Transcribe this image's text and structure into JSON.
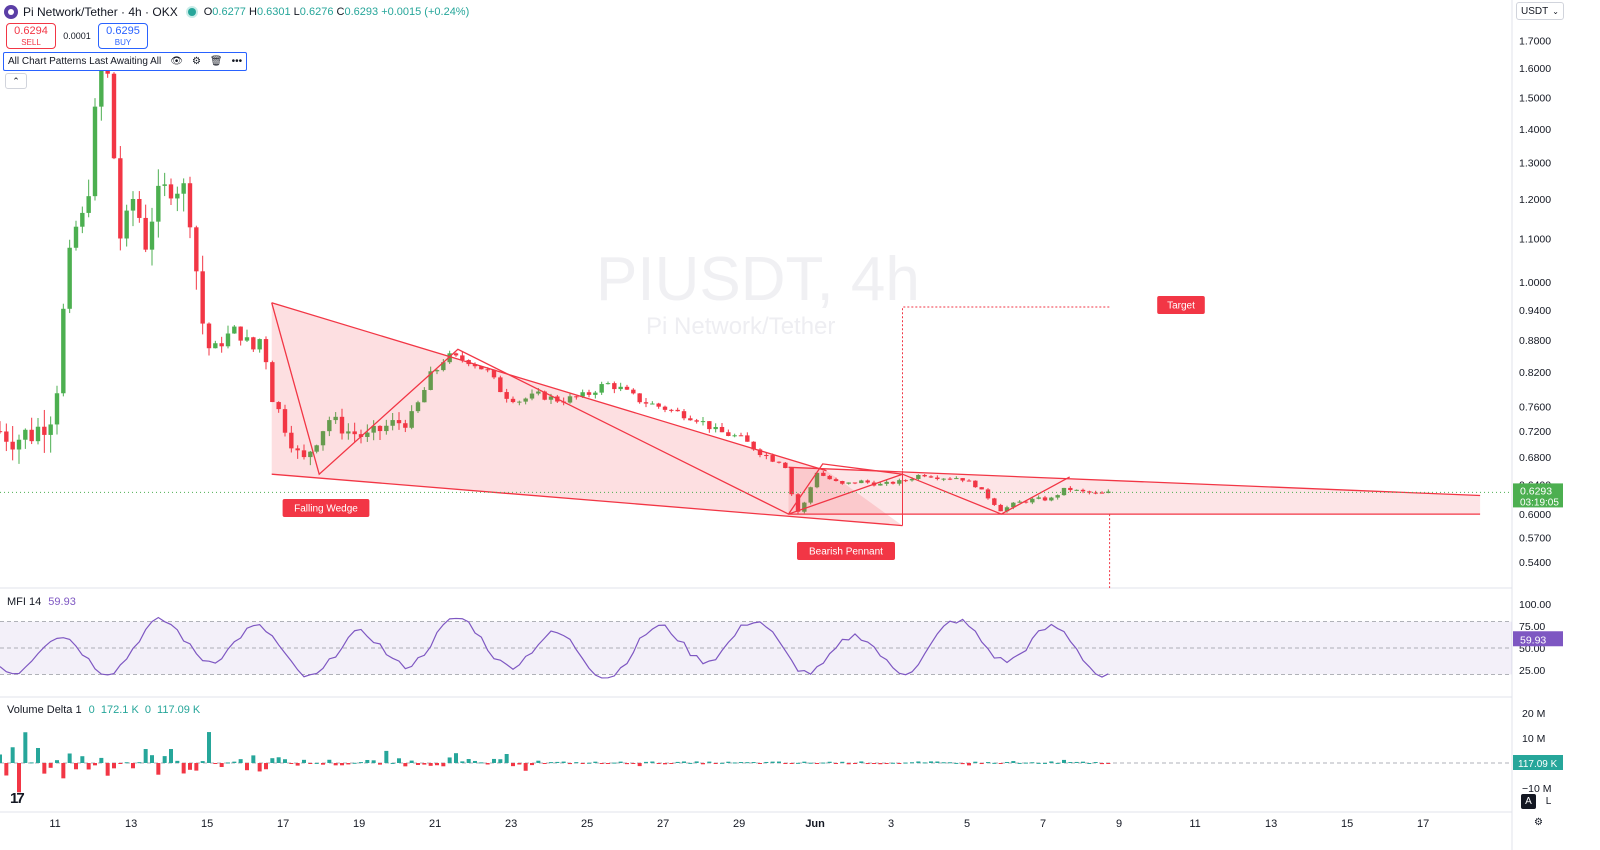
{
  "header": {
    "symbol_title": "Pi Network/Tether · 4h · OKX",
    "ohlc": {
      "o_label": "O",
      "o": "0.6277",
      "h_label": "H",
      "h": "0.6301",
      "l_label": "L",
      "l": "0.6276",
      "c_label": "C",
      "c": "0.6293",
      "change": "+0.0015 (+0.24%)"
    }
  },
  "trade": {
    "sell_price": "0.6294",
    "sell_label": "SELL",
    "spread": "0.0001",
    "buy_price": "0.6295",
    "buy_label": "BUY"
  },
  "indicator_bar": {
    "label": "All Chart Patterns Last Awaiting All",
    "icons": [
      "eye-icon",
      "settings-icon",
      "trash-icon",
      "more-icon"
    ]
  },
  "axis_currency": "USDT",
  "watermark": {
    "symbol": "PIUSDT, 4h",
    "name": "Pi Network/Tether"
  },
  "mfi": {
    "title": "MFI 14",
    "value": "59.93",
    "scale": [
      "100.00",
      "75.00",
      "50.00",
      "25.00"
    ],
    "band": [
      20,
      80
    ],
    "color": "#7e57c2"
  },
  "volume_delta": {
    "title": "Volume Delta 1",
    "v1": "0",
    "v2": "172.1 K",
    "v3": "0",
    "v4": "117.09 K",
    "scale": [
      "20 M",
      "10 M",
      "−10 M"
    ],
    "last": "117.09 K"
  },
  "price_tag": {
    "price": "0.6293",
    "countdown": "03:19:05",
    "color": "#4caf50"
  },
  "colors": {
    "up": "#4caf50",
    "down": "#f23645",
    "pattern": "#f23645"
  },
  "chart_data": {
    "type": "candlestick",
    "y_scale": "log",
    "ylim": [
      0.51,
      1.85
    ],
    "y_ticks": [
      "1.7000",
      "1.6000",
      "1.5000",
      "1.4000",
      "1.3000",
      "1.2000",
      "1.1000",
      "1.0000",
      "0.9400",
      "0.8800",
      "0.8200",
      "0.7600",
      "0.7200",
      "0.6800",
      "0.6400",
      "0.6000",
      "0.5700",
      "0.5400"
    ],
    "y_tick_values": [
      1.7,
      1.6,
      1.5,
      1.4,
      1.3,
      1.2,
      1.1,
      1.0,
      0.94,
      0.88,
      0.82,
      0.76,
      0.72,
      0.68,
      0.64,
      0.6,
      0.57,
      0.54
    ],
    "x_range_days": [
      9.55,
      28.05
    ],
    "x_ticks": [
      {
        "label": "11",
        "d": 11
      },
      {
        "label": "13",
        "d": 13
      },
      {
        "label": "15",
        "d": 15
      },
      {
        "label": "17",
        "d": 17
      },
      {
        "label": "19",
        "d": 19
      },
      {
        "label": "21",
        "d": 21
      },
      {
        "label": "23",
        "d": 23
      },
      {
        "label": "25",
        "d": 25
      },
      {
        "label": "27",
        "d": 27
      },
      {
        "label": "29",
        "d": 29
      },
      {
        "label": "Jun",
        "d": 31
      },
      {
        "label": "3",
        "d": 33
      },
      {
        "label": "5",
        "d": 35
      },
      {
        "label": "7",
        "d": 37
      },
      {
        "label": "9",
        "d": 39
      },
      {
        "label": "11",
        "d": 41
      },
      {
        "label": "13",
        "d": 43
      },
      {
        "label": "15",
        "d": 45
      },
      {
        "label": "17",
        "d": 47
      }
    ],
    "anchors": [
      [
        9.55,
        0.72
      ],
      [
        10.0,
        0.71
      ],
      [
        10.5,
        0.72
      ],
      [
        11.0,
        0.76
      ],
      [
        11.2,
        0.92
      ],
      [
        11.5,
        1.12
      ],
      [
        11.8,
        1.15
      ],
      [
        12.2,
        1.6
      ],
      [
        12.45,
        1.55
      ],
      [
        12.6,
        1.2
      ],
      [
        12.75,
        1.08
      ],
      [
        13.1,
        1.22
      ],
      [
        13.35,
        1.08
      ],
      [
        13.6,
        1.18
      ],
      [
        13.9,
        1.22
      ],
      [
        14.1,
        1.25
      ],
      [
        14.4,
        1.22
      ],
      [
        14.6,
        1.15
      ],
      [
        14.8,
        0.94
      ],
      [
        15.1,
        0.85
      ],
      [
        15.4,
        0.88
      ],
      [
        15.8,
        0.9
      ],
      [
        16.2,
        0.86
      ],
      [
        16.45,
        0.89
      ],
      [
        16.7,
        0.78
      ],
      [
        17.1,
        0.72
      ],
      [
        17.5,
        0.67
      ],
      [
        17.8,
        0.7
      ],
      [
        18.2,
        0.74
      ],
      [
        18.7,
        0.72
      ],
      [
        19.2,
        0.71
      ],
      [
        19.8,
        0.73
      ],
      [
        20.4,
        0.74
      ],
      [
        20.8,
        0.8
      ],
      [
        21.3,
        0.85
      ],
      [
        21.9,
        0.84
      ],
      [
        22.4,
        0.82
      ],
      [
        22.8,
        0.78
      ],
      [
        23.2,
        0.77
      ],
      [
        23.7,
        0.78
      ],
      [
        24.3,
        0.77
      ],
      [
        25.0,
        0.78
      ],
      [
        25.5,
        0.8
      ],
      [
        25.9,
        0.79
      ],
      [
        26.4,
        0.77
      ],
      [
        26.9,
        0.76
      ],
      [
        27.4,
        0.75
      ],
      [
        27.9,
        0.74
      ],
      [
        28.4,
        0.72
      ],
      [
        29.0,
        0.71
      ],
      [
        29.5,
        0.69
      ],
      [
        29.8,
        0.68
      ],
      [
        30.2,
        0.67
      ],
      [
        30.5,
        0.6
      ],
      [
        30.8,
        0.62
      ],
      [
        31.0,
        0.66
      ],
      [
        31.3,
        0.65
      ],
      [
        31.7,
        0.64
      ],
      [
        32.2,
        0.645
      ],
      [
        32.7,
        0.64
      ],
      [
        33.3,
        0.645
      ],
      [
        33.8,
        0.655
      ],
      [
        34.3,
        0.65
      ],
      [
        34.8,
        0.65
      ],
      [
        35.2,
        0.64
      ],
      [
        35.6,
        0.62
      ],
      [
        35.9,
        0.605
      ],
      [
        36.3,
        0.615
      ],
      [
        36.8,
        0.62
      ],
      [
        37.2,
        0.62
      ],
      [
        37.6,
        0.635
      ],
      [
        38.0,
        0.63
      ],
      [
        38.5,
        0.627
      ],
      [
        38.75,
        0.6293
      ]
    ],
    "patterns": [
      {
        "name": "Falling Wedge",
        "label": "Falling Wedge",
        "upper": [
          [
            16.7,
            0.955
          ],
          [
            31.3,
            0.66
          ]
        ],
        "lower": [
          [
            16.7,
            0.655
          ],
          [
            33.3,
            0.585
          ]
        ],
        "zigzag": [
          [
            16.7,
            0.955
          ],
          [
            17.95,
            0.655
          ],
          [
            21.6,
            0.862
          ],
          [
            30.3,
            0.6
          ],
          [
            33.3,
            0.655
          ]
        ]
      },
      {
        "name": "Bearish Pennant",
        "label": "Bearish Pennant",
        "upper": [
          [
            30.3,
            0.665
          ],
          [
            48.5,
            0.625
          ]
        ],
        "lower": [
          [
            30.3,
            0.6
          ],
          [
            48.5,
            0.6
          ]
        ],
        "zigzag": [
          [
            30.3,
            0.6
          ],
          [
            31.2,
            0.67
          ],
          [
            33.3,
            0.655
          ],
          [
            35.9,
            0.6
          ],
          [
            37.7,
            0.651
          ]
        ]
      }
    ],
    "target": {
      "label": "Target",
      "price": 0.946,
      "from_d": 33.3,
      "to_d": 38.75
    },
    "projection": {
      "from_price": 0.6,
      "to_price": 0.52,
      "d": 38.75
    }
  }
}
